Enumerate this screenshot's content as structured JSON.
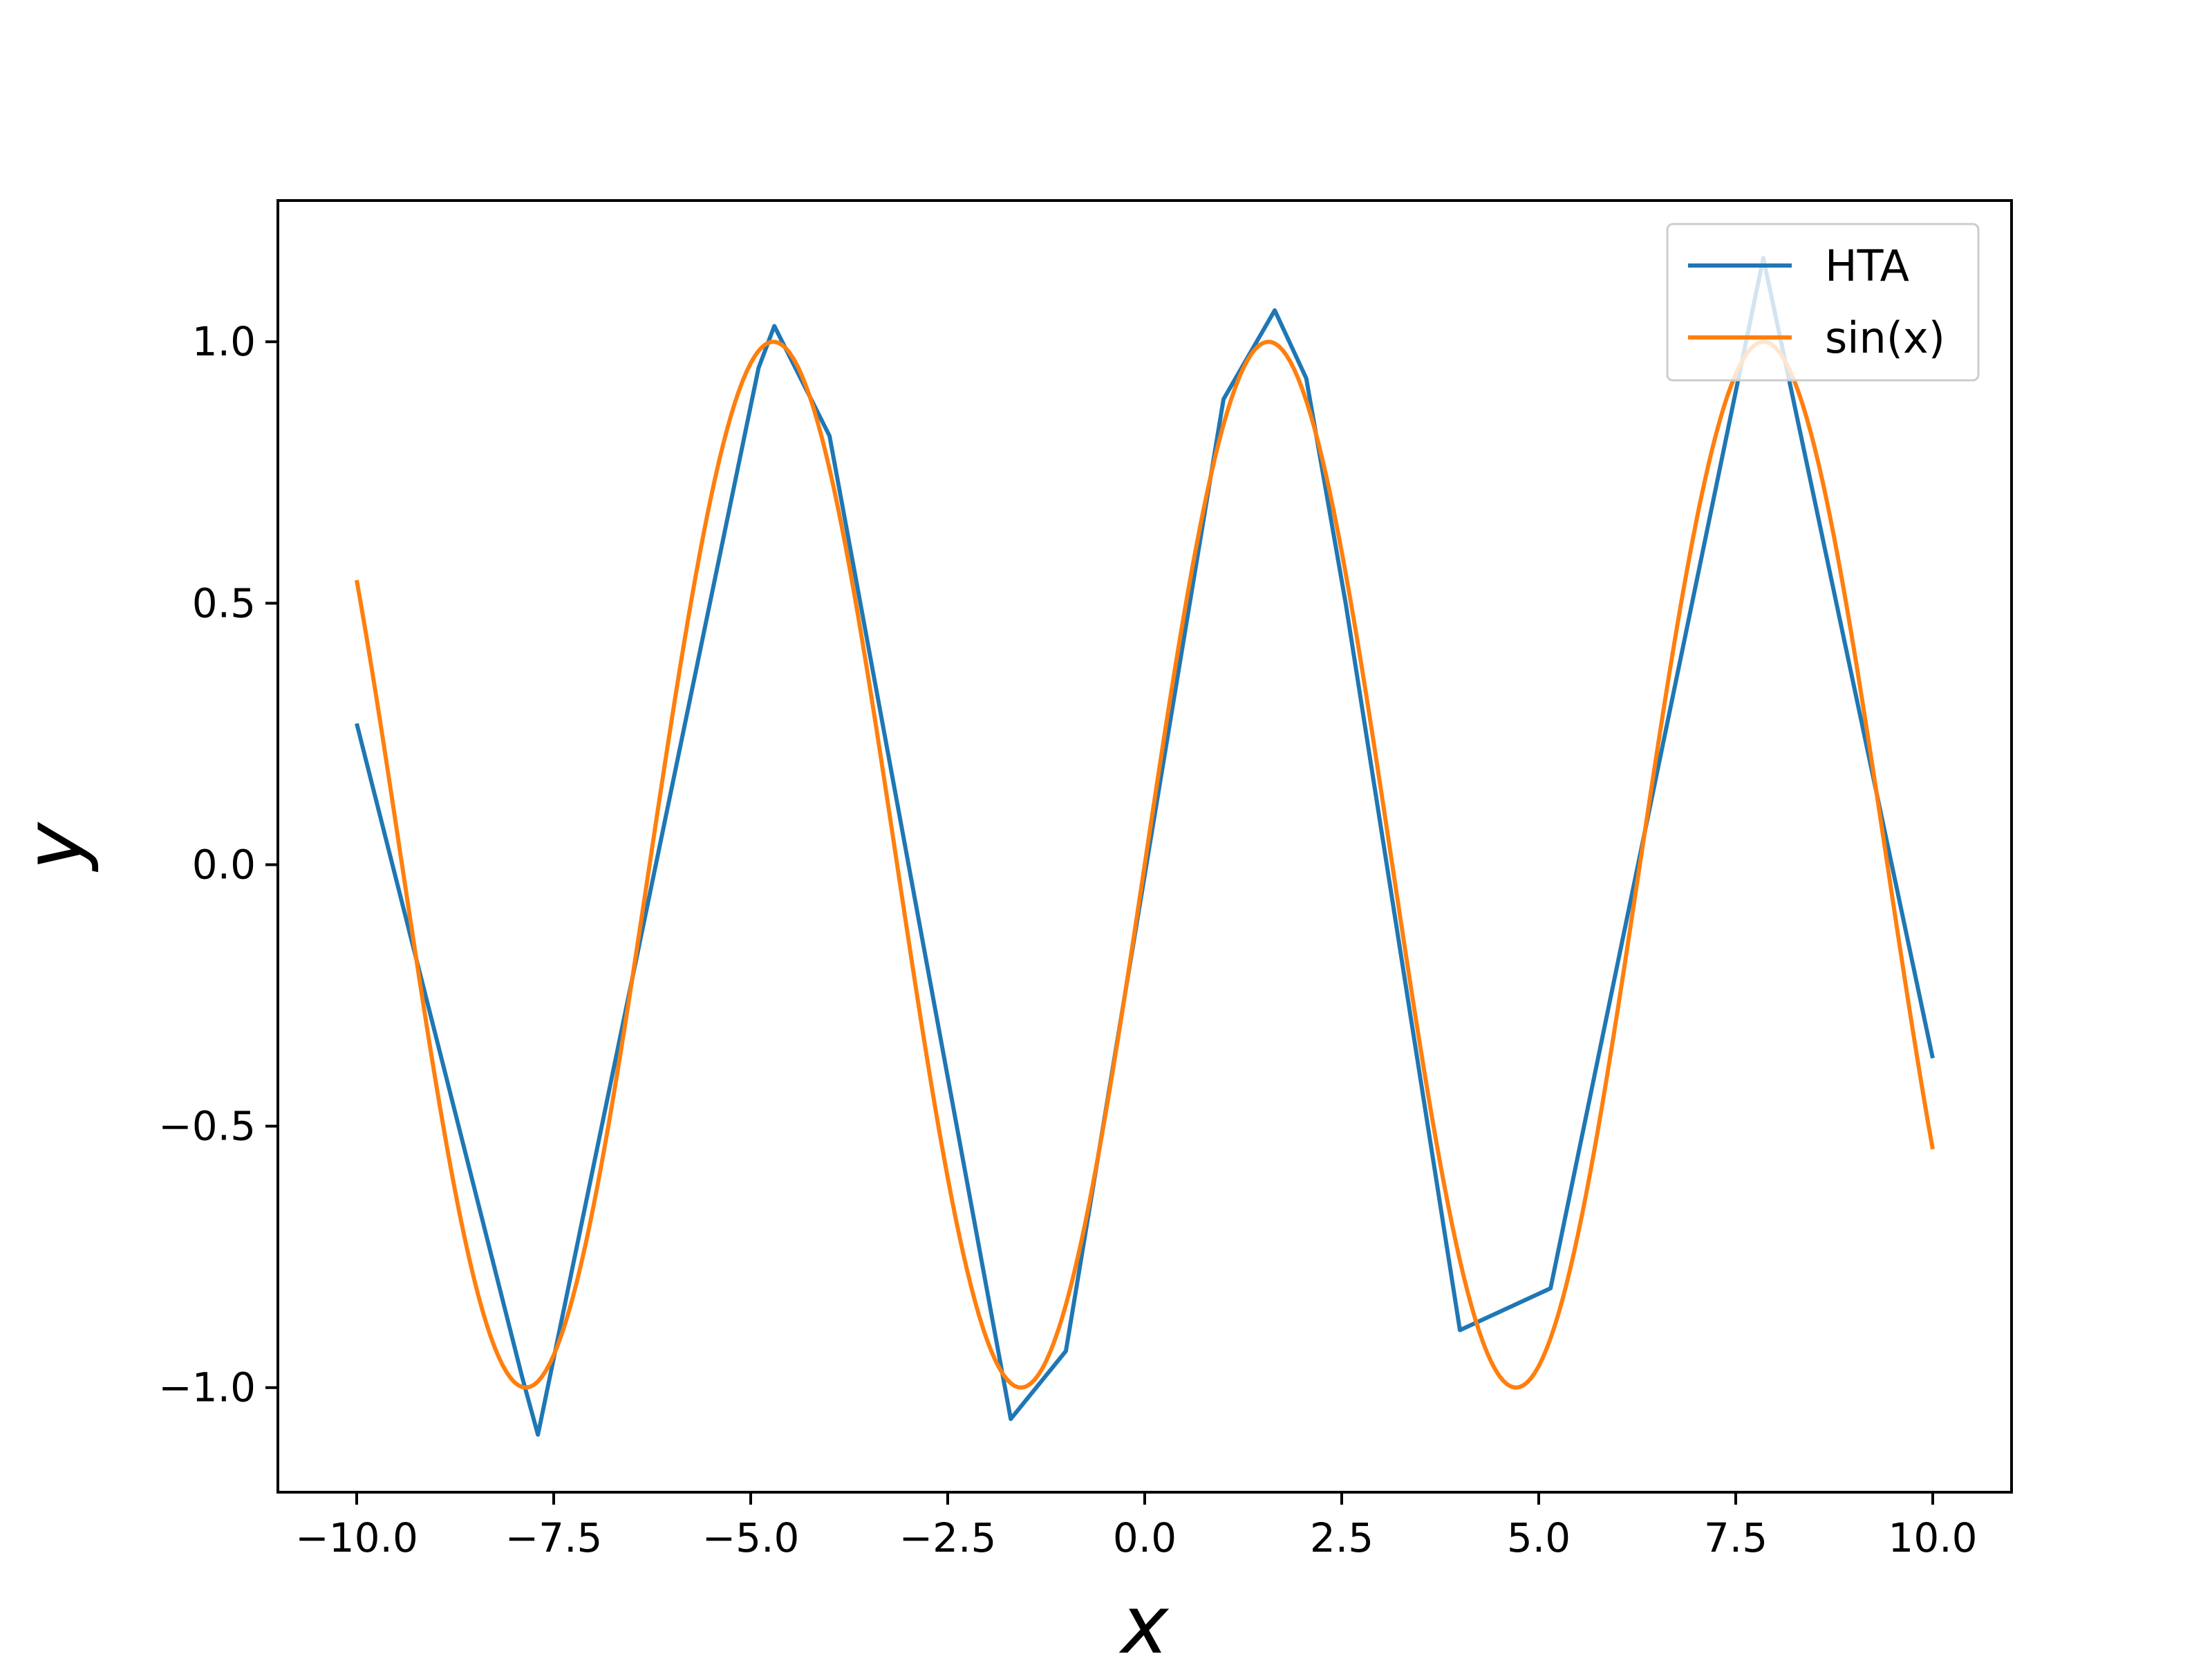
{
  "chart_data": {
    "type": "line",
    "title": "",
    "xlabel": "x",
    "ylabel": "y",
    "xlim": [
      -11.0,
      11.0
    ],
    "ylim": [
      -1.2,
      1.27
    ],
    "grid": false,
    "legend_position": "top-right",
    "x_ticks": [
      {
        "value": -10.0,
        "label": "−10.0"
      },
      {
        "value": -7.5,
        "label": "−7.5"
      },
      {
        "value": -5.0,
        "label": "−5.0"
      },
      {
        "value": -2.5,
        "label": "−2.5"
      },
      {
        "value": 0.0,
        "label": "0.0"
      },
      {
        "value": 2.5,
        "label": "2.5"
      },
      {
        "value": 5.0,
        "label": "5.0"
      },
      {
        "value": 7.5,
        "label": "7.5"
      },
      {
        "value": 10.0,
        "label": "10.0"
      }
    ],
    "y_ticks": [
      {
        "value": -1.0,
        "label": "−1.0"
      },
      {
        "value": -0.5,
        "label": "−0.5"
      },
      {
        "value": 0.0,
        "label": "0.0"
      },
      {
        "value": 0.5,
        "label": "0.5"
      },
      {
        "value": 1.0,
        "label": "1.0"
      }
    ],
    "series": [
      {
        "name": "HTA",
        "color": "#1f77b4",
        "x": [
          -10.0,
          -7.9,
          -7.7,
          -4.9,
          -4.7,
          -4.0,
          -1.7,
          -1.0,
          1.0,
          1.65,
          2.05,
          2.55,
          4.0,
          5.15,
          7.85,
          10.0
        ],
        "y": [
          0.27,
          -0.98,
          -1.09,
          0.95,
          1.03,
          0.82,
          -1.06,
          -0.93,
          0.89,
          1.06,
          0.93,
          0.5,
          -0.89,
          -0.81,
          1.16,
          -0.37
        ]
      },
      {
        "name": "sin(x)",
        "color": "#ff7f0e",
        "function": "sin",
        "x_range": [
          -10.0,
          10.0
        ],
        "samples": 401
      }
    ]
  }
}
